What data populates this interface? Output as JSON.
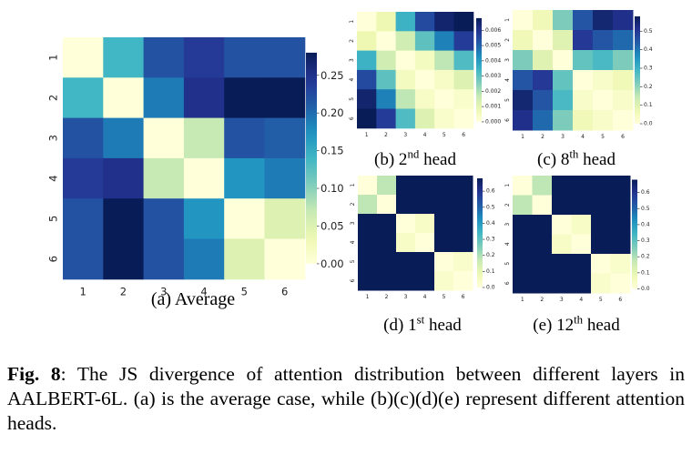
{
  "colors": {
    "colormap": [
      "#ffffd9",
      "#edf8b1",
      "#c7e9b4",
      "#7fcdbb",
      "#41b6c4",
      "#1d91c0",
      "#225ea8",
      "#253494",
      "#081d58"
    ]
  },
  "chart_data": [
    {
      "id": "avg",
      "type": "heatmap",
      "caption_prefix": "(a) Average",
      "caption_sup": "",
      "caption_suffix": "",
      "x_ticks": [
        "1",
        "2",
        "3",
        "4",
        "5",
        "6"
      ],
      "y_ticks": [
        "1",
        "2",
        "3",
        "4",
        "5",
        "6"
      ],
      "vmin": 0,
      "vmax": 0.28,
      "colorbar_ticks": [
        "0.00",
        "0.05",
        "0.10",
        "0.15",
        "0.20",
        "0.25"
      ],
      "colorbar_tick_values": [
        0,
        0.05,
        0.1,
        0.15,
        0.2,
        0.25
      ],
      "matrix": [
        [
          0.0,
          0.14,
          0.22,
          0.24,
          0.22,
          0.22
        ],
        [
          0.14,
          0.0,
          0.19,
          0.25,
          0.28,
          0.28
        ],
        [
          0.22,
          0.19,
          0.0,
          0.07,
          0.22,
          0.21
        ],
        [
          0.24,
          0.25,
          0.07,
          0.0,
          0.17,
          0.19
        ],
        [
          0.22,
          0.28,
          0.22,
          0.17,
          0.0,
          0.05
        ],
        [
          0.22,
          0.28,
          0.22,
          0.19,
          0.05,
          0.0
        ]
      ]
    },
    {
      "id": "h2",
      "type": "heatmap",
      "caption_prefix": "(b) 2",
      "caption_sup": "nd",
      "caption_suffix": " head",
      "x_ticks": [
        "1",
        "2",
        "3",
        "4",
        "5",
        "6"
      ],
      "y_ticks": [
        "1",
        "2",
        "3",
        "4",
        "5",
        "6"
      ],
      "vmin": 0,
      "vmax": 0.0068,
      "colorbar_ticks": [
        "0.000",
        "0.001",
        "0.002",
        "0.003",
        "0.004",
        "0.005",
        "0.006"
      ],
      "colorbar_tick_values": [
        0,
        0.001,
        0.002,
        0.003,
        0.004,
        0.005,
        0.006
      ],
      "matrix": [
        [
          0.0,
          0.0008,
          0.0035,
          0.0055,
          0.0065,
          0.0068
        ],
        [
          0.0008,
          0.0,
          0.0015,
          0.003,
          0.0045,
          0.0058
        ],
        [
          0.0035,
          0.0015,
          0.0,
          0.0005,
          0.0018,
          0.0032
        ],
        [
          0.0055,
          0.003,
          0.0005,
          0.0,
          0.0004,
          0.0012
        ],
        [
          0.0065,
          0.0045,
          0.0018,
          0.0004,
          0.0,
          0.0003
        ],
        [
          0.0068,
          0.0058,
          0.0032,
          0.0012,
          0.0003,
          0.0
        ]
      ]
    },
    {
      "id": "h8",
      "type": "heatmap",
      "caption_prefix": "(c) 8",
      "caption_sup": "th",
      "caption_suffix": " head",
      "x_ticks": [
        "1",
        "2",
        "3",
        "4",
        "5",
        "6"
      ],
      "y_ticks": [
        "1",
        "2",
        "3",
        "4",
        "5",
        "6"
      ],
      "vmin": 0,
      "vmax": 0.58,
      "colorbar_ticks": [
        "0.0",
        "0.1",
        "0.2",
        "0.3",
        "0.4",
        "0.5"
      ],
      "colorbar_tick_values": [
        0,
        0.1,
        0.2,
        0.3,
        0.4,
        0.5
      ],
      "matrix": [
        [
          0.0,
          0.06,
          0.22,
          0.45,
          0.55,
          0.52
        ],
        [
          0.06,
          0.0,
          0.1,
          0.5,
          0.45,
          0.42
        ],
        [
          0.22,
          0.1,
          0.0,
          0.25,
          0.28,
          0.22
        ],
        [
          0.45,
          0.5,
          0.25,
          0.0,
          0.03,
          0.06
        ],
        [
          0.55,
          0.45,
          0.28,
          0.03,
          0.0,
          0.03
        ],
        [
          0.52,
          0.42,
          0.22,
          0.06,
          0.03,
          0.0
        ]
      ]
    },
    {
      "id": "h1",
      "type": "heatmap",
      "caption_prefix": "(d) 1",
      "caption_sup": "st",
      "caption_suffix": " head",
      "x_ticks": [
        "1",
        "2",
        "3",
        "4",
        "5",
        "6"
      ],
      "y_ticks": [
        "1",
        "2",
        "3",
        "4",
        "5",
        "6"
      ],
      "vmin": 0,
      "vmax": 0.68,
      "colorbar_ticks": [
        "0.0",
        "0.1",
        "0.2",
        "0.3",
        "0.4",
        "0.5",
        "0.6"
      ],
      "colorbar_tick_values": [
        0,
        0.1,
        0.2,
        0.3,
        0.4,
        0.5,
        0.6
      ],
      "matrix": [
        [
          0.0,
          0.18,
          0.68,
          0.68,
          0.68,
          0.68
        ],
        [
          0.18,
          0.0,
          0.68,
          0.68,
          0.68,
          0.68
        ],
        [
          0.68,
          0.68,
          0.0,
          0.04,
          0.68,
          0.68
        ],
        [
          0.68,
          0.68,
          0.04,
          0.0,
          0.68,
          0.68
        ],
        [
          0.68,
          0.68,
          0.68,
          0.68,
          0.0,
          0.03
        ],
        [
          0.68,
          0.68,
          0.68,
          0.68,
          0.03,
          0.0
        ]
      ]
    },
    {
      "id": "h12",
      "type": "heatmap",
      "caption_prefix": "(e) 12",
      "caption_sup": "th",
      "caption_suffix": " head",
      "x_ticks": [
        "1",
        "2",
        "3",
        "4",
        "5",
        "6"
      ],
      "y_ticks": [
        "1",
        "2",
        "3",
        "4",
        "5",
        "6"
      ],
      "vmin": 0,
      "vmax": 0.68,
      "colorbar_ticks": [
        "0.0",
        "0.1",
        "0.2",
        "0.3",
        "0.4",
        "0.5",
        "0.6"
      ],
      "colorbar_tick_values": [
        0,
        0.1,
        0.2,
        0.3,
        0.4,
        0.5,
        0.6
      ],
      "matrix": [
        [
          0.0,
          0.18,
          0.68,
          0.68,
          0.68,
          0.68
        ],
        [
          0.18,
          0.0,
          0.68,
          0.68,
          0.68,
          0.68
        ],
        [
          0.68,
          0.68,
          0.0,
          0.04,
          0.68,
          0.68
        ],
        [
          0.68,
          0.68,
          0.04,
          0.0,
          0.68,
          0.68
        ],
        [
          0.68,
          0.68,
          0.68,
          0.68,
          0.0,
          0.03
        ],
        [
          0.68,
          0.68,
          0.68,
          0.68,
          0.03,
          0.0
        ]
      ]
    }
  ],
  "caption": {
    "label": "Fig. 8",
    "text": ": The JS divergence of attention distribution between different layers in AALBERT-6L. (a) is the average case, while (b)(c)(d)(e) represent different attention heads."
  }
}
